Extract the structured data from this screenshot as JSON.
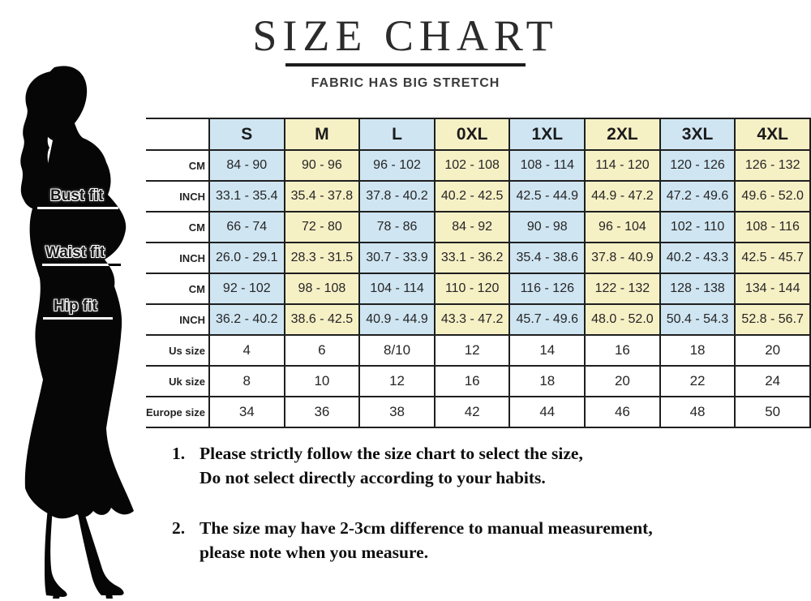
{
  "header": {
    "title": "SIZE CHART",
    "subtitle": "FABRIC HAS BIG STRETCH"
  },
  "colors": {
    "column_blue": "#cfe5f2",
    "column_yellow": "#f6f0c5",
    "border": "#1f1f1f"
  },
  "table": {
    "sizes": [
      "S",
      "M",
      "L",
      "0XL",
      "1XL",
      "2XL",
      "3XL",
      "4XL"
    ],
    "groups": [
      {
        "label": "Bust fit",
        "rows": [
          {
            "unit": "CM",
            "values": [
              "84 - 90",
              "90 - 96",
              "96 - 102",
              "102 - 108",
              "108 - 114",
              "114 - 120",
              "120 - 126",
              "126 - 132"
            ]
          },
          {
            "unit": "INCH",
            "values": [
              "33.1 - 35.4",
              "35.4 - 37.8",
              "37.8 - 40.2",
              "40.2 - 42.5",
              "42.5 - 44.9",
              "44.9 - 47.2",
              "47.2 - 49.6",
              "49.6 - 52.0"
            ]
          }
        ]
      },
      {
        "label": "Waist fit",
        "rows": [
          {
            "unit": "CM",
            "values": [
              "66 - 74",
              "72 - 80",
              "78 - 86",
              "84 - 92",
              "90 - 98",
              "96 - 104",
              "102 - 110",
              "108 - 116"
            ]
          },
          {
            "unit": "INCH",
            "values": [
              "26.0 - 29.1",
              "28.3 - 31.5",
              "30.7 - 33.9",
              "33.1 - 36.2",
              "35.4 - 38.6",
              "37.8 - 40.9",
              "40.2 - 43.3",
              "42.5 - 45.7"
            ]
          }
        ]
      },
      {
        "label": "Hip fit",
        "rows": [
          {
            "unit": "CM",
            "values": [
              "92 - 102",
              "98 - 108",
              "104 - 114",
              "110 - 120",
              "116 - 126",
              "122 - 132",
              "128 - 138",
              "134 - 144"
            ]
          },
          {
            "unit": "INCH",
            "values": [
              "36.2 - 40.2",
              "38.6 - 42.5",
              "40.9 - 44.9",
              "43.3 - 47.2",
              "45.7 - 49.6",
              "48.0 - 52.0",
              "50.4 - 54.3",
              "52.8 - 56.7"
            ]
          }
        ]
      }
    ],
    "extra_rows": [
      {
        "label": "Us size",
        "values": [
          "4",
          "6",
          "8/10",
          "12",
          "14",
          "16",
          "18",
          "20"
        ]
      },
      {
        "label": "Uk size",
        "values": [
          "8",
          "10",
          "12",
          "16",
          "18",
          "20",
          "22",
          "24"
        ]
      },
      {
        "label": "Europe size",
        "values": [
          "34",
          "36",
          "38",
          "42",
          "44",
          "46",
          "48",
          "50"
        ]
      }
    ]
  },
  "notes": [
    {
      "num": "1.",
      "lines": [
        "Please strictly follow the size chart to select the size,",
        "Do not select directly according to your habits."
      ]
    },
    {
      "num": "2.",
      "lines": [
        "The size may have 2-3cm difference  to manual measurement,",
        "please note when you measure."
      ]
    }
  ]
}
